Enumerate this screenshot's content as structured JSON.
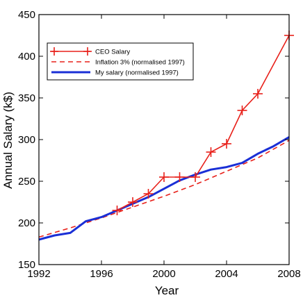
{
  "chart_data": {
    "type": "line",
    "xlabel": "Year",
    "ylabel": "Annual Salary (k$)",
    "xlim": [
      1992,
      2008
    ],
    "ylim": [
      150,
      450
    ],
    "xticks": [
      1992,
      1996,
      2000,
      2004,
      2008
    ],
    "yticks": [
      150,
      200,
      250,
      300,
      350,
      400,
      450
    ],
    "grid": false,
    "legend_position": "top-left",
    "series": [
      {
        "name": "CEO Salary",
        "color": "#e8201a",
        "style": "solid-with-plus-markers",
        "x": [
          1997,
          1998,
          1999,
          2000,
          2001,
          2002,
          2003,
          2004,
          2005,
          2006,
          2008
        ],
        "y": [
          215,
          225,
          235,
          255,
          255,
          255,
          285,
          295,
          335,
          355,
          425
        ]
      },
      {
        "name": "Inflation 3% (normalised 1997)",
        "color": "#e8201a",
        "style": "dashed",
        "x": [
          1992,
          1994,
          1996,
          1998,
          2000,
          2002,
          2004,
          2006,
          2008
        ],
        "y": [
          183,
          194,
          206,
          219,
          232,
          246,
          262,
          278,
          299
        ]
      },
      {
        "name": "My salary (normalised 1997)",
        "color": "#1a2fd6",
        "style": "solid-thick",
        "x": [
          1992,
          1993,
          1994,
          1995,
          1996,
          1997,
          1998,
          1999,
          2000,
          2001,
          2002,
          2003,
          2004,
          2005,
          2006,
          2007,
          2008
        ],
        "y": [
          180,
          185,
          188,
          202,
          207,
          215,
          223,
          231,
          241,
          251,
          258,
          264,
          267,
          272,
          283,
          292,
          303
        ]
      }
    ]
  }
}
